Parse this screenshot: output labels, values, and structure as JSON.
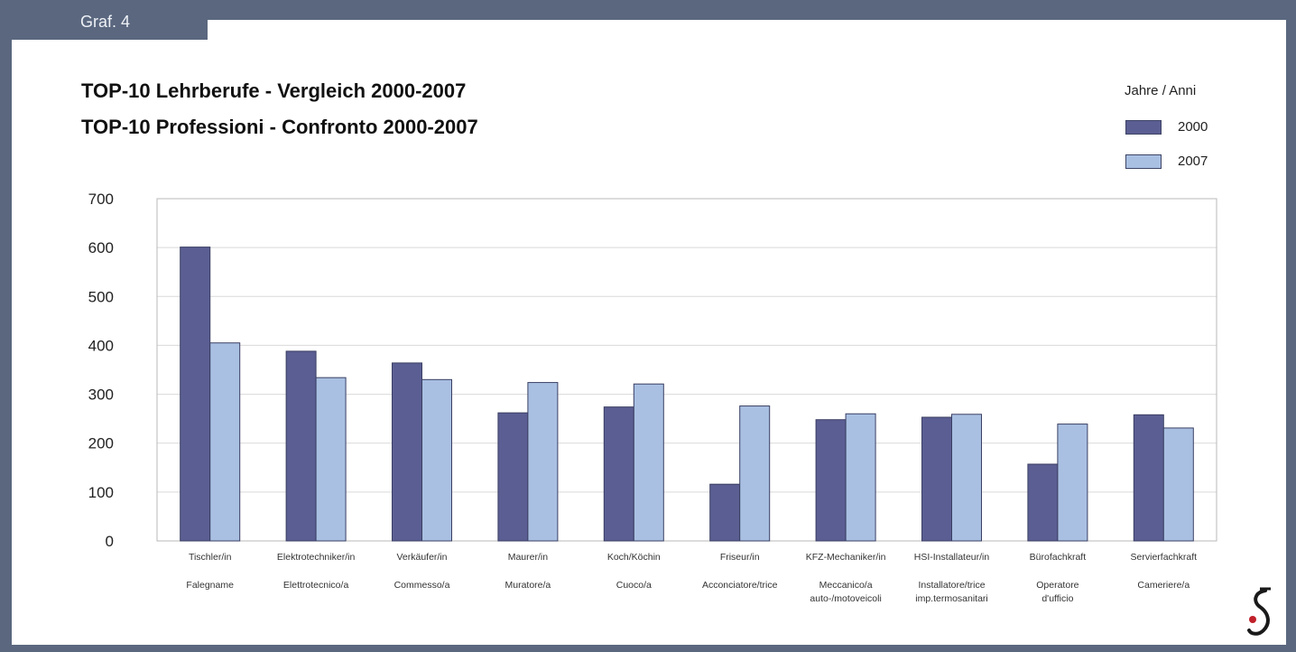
{
  "tab_label": "Graf. 4",
  "title_line1": "TOP-10 Lehrberufe - Vergleich 2000-2007",
  "title_line2": "TOP-10 Professioni -  Confronto 2000-2007",
  "legend_title": "Jahre / Anni",
  "colors": {
    "frame": "#5a677f",
    "series_2000": "#5b5e92",
    "series_2007": "#a9c0e2",
    "bar_outline": "#3a3f63",
    "grid": "#d9d9d9",
    "logo_red": "#c0202a",
    "logo_dark": "#1a1a1a"
  },
  "icons": {
    "logo": "logo-icon"
  },
  "chart_data": {
    "type": "bar",
    "title": "TOP-10 Lehrberufe - Vergleich 2000-2007 / TOP-10 Professioni -  Confronto 2000-2007",
    "categories": [
      "Tischler/in",
      "Elektrotechniker/in",
      "Verkäufer/in",
      "Maurer/in",
      "Koch/Köchin",
      "Friseur/in",
      "KFZ-Mechaniker/in",
      "HSI-Installateur/in",
      "Bürofachkraft",
      "Servierfachkraft"
    ],
    "categories_it": [
      [
        "Falegname"
      ],
      [
        "Elettrotecnico/a"
      ],
      [
        "Commesso/a"
      ],
      [
        "Muratore/a"
      ],
      [
        "Cuoco/a"
      ],
      [
        "Acconciatore/trice"
      ],
      [
        "Meccanico/a",
        "auto-/motoveicoli"
      ],
      [
        "Installatore/trice",
        "imp.termosanitari"
      ],
      [
        "Operatore",
        "d'ufficio"
      ],
      [
        "Cameriere/a"
      ]
    ],
    "series": [
      {
        "name": "2000",
        "values": [
          601,
          388,
          364,
          262,
          274,
          116,
          248,
          253,
          157,
          258
        ]
      },
      {
        "name": "2007",
        "values": [
          405,
          334,
          330,
          324,
          321,
          276,
          260,
          259,
          239,
          231
        ]
      }
    ],
    "ylim": [
      0,
      700
    ],
    "yticks": [
      0,
      100,
      200,
      300,
      400,
      500,
      600,
      700
    ],
    "grid": true,
    "legend_position": "top-right",
    "xlabel": "",
    "ylabel": ""
  }
}
